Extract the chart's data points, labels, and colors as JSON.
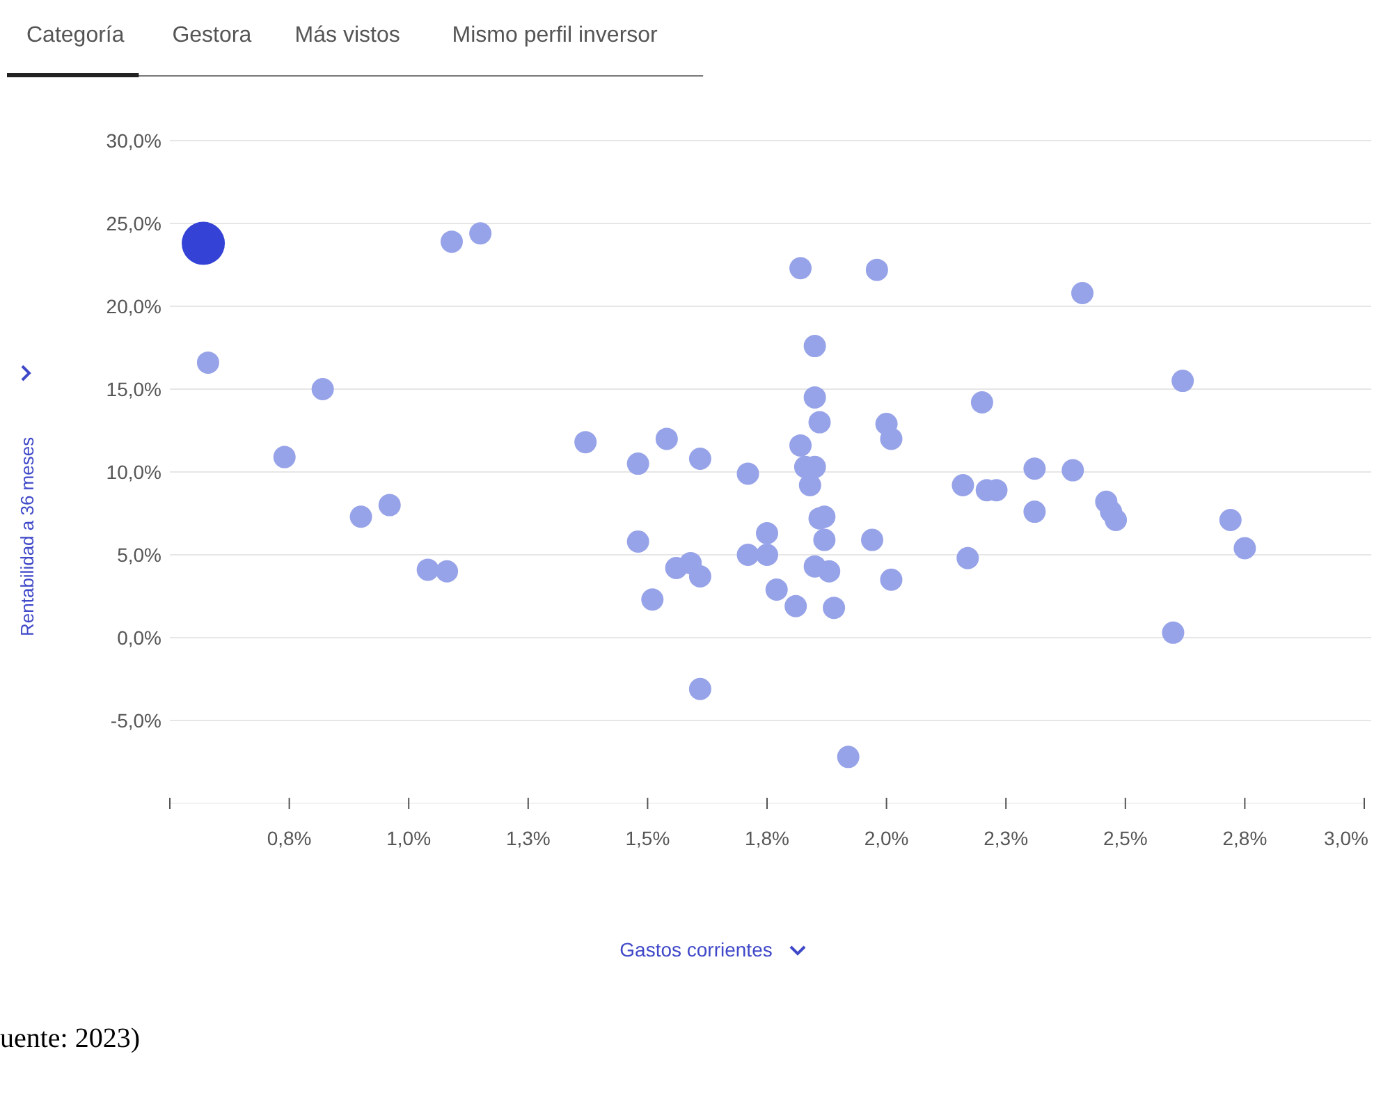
{
  "chart_data": {
    "type": "scatter",
    "xlabel": "Gastos corrientes",
    "ylabel": "Rentabilidad a 36 meses",
    "annotations": [
      "Categoría",
      "Gestora",
      "Más vistos",
      "Mismo perfil inversor",
      "uente: 2023)"
    ],
    "xlim": [
      0.5,
      3.0
    ],
    "xticks": [
      {
        "value": 0.5,
        "label": null
      },
      {
        "value": 0.75,
        "label": "0,8%"
      },
      {
        "value": 1.0,
        "label": "1,0%"
      },
      {
        "value": 1.25,
        "label": "1,3%"
      },
      {
        "value": 1.5,
        "label": "1,5%"
      },
      {
        "value": 1.75,
        "label": "1,8%"
      },
      {
        "value": 2.0,
        "label": "2,0%"
      },
      {
        "value": 2.25,
        "label": "2,3%"
      },
      {
        "value": 2.5,
        "label": "2,5%"
      },
      {
        "value": 2.75,
        "label": "2,8%"
      },
      {
        "value": 3.0,
        "label": "3,0%"
      }
    ],
    "ylim": [
      -10,
      30
    ],
    "yticks": [
      {
        "value": -5,
        "label": "-5,0%"
      },
      {
        "value": 0,
        "label": "0,0%"
      },
      {
        "value": 5,
        "label": "5,0%"
      },
      {
        "value": 10,
        "label": "10,0%"
      },
      {
        "value": 15,
        "label": "15,0%"
      },
      {
        "value": 20,
        "label": "20,0%"
      },
      {
        "value": 25,
        "label": "25,0%"
      },
      {
        "value": 30,
        "label": "30,0%"
      }
    ],
    "grid": "y",
    "marker": "circle",
    "series": [
      {
        "color": "#97a3e8",
        "x": [
          0.58,
          0.74,
          0.82,
          0.9,
          0.96,
          1.04,
          1.08,
          1.09,
          1.15,
          1.37,
          1.48,
          1.48,
          1.51,
          1.54,
          1.56,
          1.59,
          1.61,
          1.61,
          1.61,
          1.71,
          1.71,
          1.75,
          1.75,
          1.77,
          1.81,
          1.82,
          1.82,
          1.83,
          1.85,
          1.84,
          1.85,
          1.85,
          1.86,
          1.86,
          1.87,
          1.87,
          1.85,
          1.88,
          1.89,
          1.92,
          1.97,
          1.98,
          2.0,
          2.01,
          2.01,
          2.16,
          2.17,
          2.2,
          2.21,
          2.23,
          2.31,
          2.31,
          2.39,
          2.41,
          2.46,
          2.47,
          2.48,
          2.6,
          2.62,
          2.72,
          2.75
        ],
        "values": [
          16.6,
          10.9,
          15.0,
          7.3,
          8.0,
          4.1,
          4.0,
          23.9,
          24.4,
          11.8,
          10.5,
          5.8,
          2.3,
          12.0,
          4.2,
          4.5,
          3.7,
          10.8,
          -3.1,
          9.9,
          5.0,
          6.3,
          5.0,
          2.9,
          1.9,
          22.3,
          11.6,
          10.3,
          10.3,
          9.2,
          17.6,
          14.5,
          13.0,
          7.2,
          7.3,
          5.9,
          4.3,
          4.0,
          1.8,
          -7.2,
          5.9,
          22.2,
          12.9,
          12.0,
          3.5,
          9.2,
          4.8,
          14.2,
          8.9,
          8.9,
          10.2,
          7.6,
          10.1,
          20.8,
          8.2,
          7.6,
          7.1,
          0.3,
          15.5,
          7.1,
          5.4
        ]
      },
      {
        "color": "#3443d6",
        "type": "bubble",
        "x": [
          0.57
        ],
        "values": [
          23.8
        ],
        "sizes": [
          1
        ]
      }
    ]
  }
}
